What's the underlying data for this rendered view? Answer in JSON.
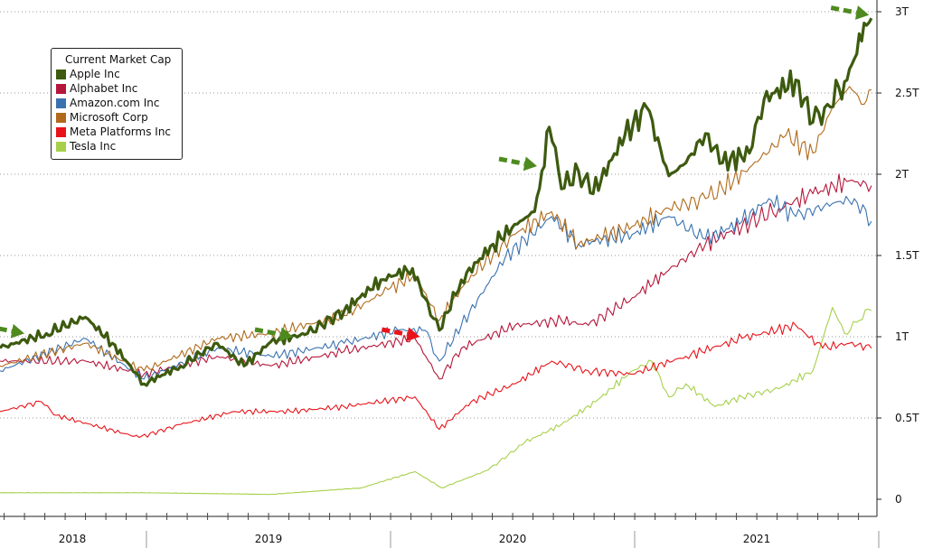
{
  "chart_data": {
    "type": "line",
    "title": "",
    "xlabel": "",
    "ylabel": "",
    "legend": {
      "title": "Current Market Cap",
      "placement": "top-left"
    },
    "xlim": [
      2018.4,
      2022.0
    ],
    "ylim": [
      0,
      3
    ],
    "x_ticks": [
      {
        "label": "2018",
        "x": 2018.7
      },
      {
        "label": "2019",
        "x": 2019.5
      },
      {
        "label": "2020",
        "x": 2020.5
      },
      {
        "label": "2021",
        "x": 2021.5
      }
    ],
    "year_boundaries": [
      2019,
      2020,
      2021,
      2022
    ],
    "y_ticks": [
      {
        "label": "0",
        "v": 0
      },
      {
        "label": "0.5T",
        "v": 0.5
      },
      {
        "label": "1T",
        "v": 1
      },
      {
        "label": "1.5T",
        "v": 1.5
      },
      {
        "label": "2T",
        "v": 2
      },
      {
        "label": "2.5T",
        "v": 2.5
      },
      {
        "label": "3T",
        "v": 3
      }
    ],
    "grid": "horizontal dotted",
    "units": "USD trillions",
    "series": [
      {
        "name": "Apple Inc",
        "color": "#3d5a0f",
        "width": 3.2,
        "points": [
          [
            2018.4,
            0.93
          ],
          [
            2018.59,
            1.02
          ],
          [
            2018.75,
            1.12
          ],
          [
            2018.86,
            0.96
          ],
          [
            2018.99,
            0.71
          ],
          [
            2019.14,
            0.82
          ],
          [
            2019.29,
            0.96
          ],
          [
            2019.4,
            0.82
          ],
          [
            2019.51,
            0.97
          ],
          [
            2019.66,
            1.02
          ],
          [
            2019.81,
            1.16
          ],
          [
            2019.96,
            1.35
          ],
          [
            2020.09,
            1.42
          ],
          [
            2020.14,
            1.24
          ],
          [
            2020.2,
            1.04
          ],
          [
            2020.29,
            1.35
          ],
          [
            2020.42,
            1.57
          ],
          [
            2020.53,
            1.71
          ],
          [
            2020.59,
            1.77
          ],
          [
            2020.62,
            2.02
          ],
          [
            2020.65,
            2.29
          ],
          [
            2020.7,
            1.91
          ],
          [
            2020.77,
            2.02
          ],
          [
            2020.83,
            1.88
          ],
          [
            2020.96,
            2.24
          ],
          [
            2021.05,
            2.41
          ],
          [
            2021.14,
            1.99
          ],
          [
            2021.21,
            2.07
          ],
          [
            2021.29,
            2.25
          ],
          [
            2021.36,
            2.07
          ],
          [
            2021.47,
            2.13
          ],
          [
            2021.53,
            2.46
          ],
          [
            2021.66,
            2.58
          ],
          [
            2021.73,
            2.32
          ],
          [
            2021.79,
            2.43
          ],
          [
            2021.86,
            2.57
          ],
          [
            2021.9,
            2.71
          ],
          [
            2021.94,
            2.93
          ],
          [
            2021.97,
            2.96
          ]
        ]
      },
      {
        "name": "Alphabet Inc",
        "color": "#b5173a",
        "width": 1.1,
        "points": [
          [
            2018.4,
            0.85
          ],
          [
            2018.75,
            0.85
          ],
          [
            2018.99,
            0.77
          ],
          [
            2019.29,
            0.88
          ],
          [
            2019.51,
            0.82
          ],
          [
            2019.81,
            0.91
          ],
          [
            2020.1,
            0.99
          ],
          [
            2020.2,
            0.74
          ],
          [
            2020.29,
            0.93
          ],
          [
            2020.51,
            1.07
          ],
          [
            2020.7,
            1.1
          ],
          [
            2020.81,
            1.07
          ],
          [
            2020.99,
            1.24
          ],
          [
            2021.14,
            1.41
          ],
          [
            2021.29,
            1.57
          ],
          [
            2021.44,
            1.68
          ],
          [
            2021.59,
            1.79
          ],
          [
            2021.73,
            1.88
          ],
          [
            2021.88,
            1.96
          ],
          [
            2021.97,
            1.93
          ]
        ]
      },
      {
        "name": "Amazon.com Inc",
        "color": "#3a72b0",
        "width": 1.1,
        "points": [
          [
            2018.4,
            0.79
          ],
          [
            2018.75,
            0.99
          ],
          [
            2018.99,
            0.74
          ],
          [
            2019.29,
            0.93
          ],
          [
            2019.51,
            0.88
          ],
          [
            2019.81,
            0.96
          ],
          [
            2020.03,
            1.04
          ],
          [
            2020.14,
            1.04
          ],
          [
            2020.2,
            0.85
          ],
          [
            2020.29,
            1.07
          ],
          [
            2020.47,
            1.49
          ],
          [
            2020.66,
            1.74
          ],
          [
            2020.77,
            1.57
          ],
          [
            2020.99,
            1.63
          ],
          [
            2021.14,
            1.74
          ],
          [
            2021.29,
            1.6
          ],
          [
            2021.44,
            1.71
          ],
          [
            2021.55,
            1.85
          ],
          [
            2021.66,
            1.74
          ],
          [
            2021.81,
            1.82
          ],
          [
            2021.9,
            1.85
          ],
          [
            2021.97,
            1.71
          ]
        ]
      },
      {
        "name": "Microsoft Corp",
        "color": "#b06a1a",
        "width": 1.1,
        "points": [
          [
            2018.4,
            0.82
          ],
          [
            2018.75,
            0.96
          ],
          [
            2018.99,
            0.79
          ],
          [
            2019.29,
            0.99
          ],
          [
            2019.51,
            1.02
          ],
          [
            2019.81,
            1.13
          ],
          [
            2019.99,
            1.29
          ],
          [
            2020.1,
            1.38
          ],
          [
            2020.2,
            1.1
          ],
          [
            2020.33,
            1.38
          ],
          [
            2020.51,
            1.63
          ],
          [
            2020.66,
            1.77
          ],
          [
            2020.77,
            1.57
          ],
          [
            2020.99,
            1.68
          ],
          [
            2021.14,
            1.79
          ],
          [
            2021.29,
            1.85
          ],
          [
            2021.36,
            1.91
          ],
          [
            2021.47,
            2.04
          ],
          [
            2021.62,
            2.24
          ],
          [
            2021.73,
            2.13
          ],
          [
            2021.81,
            2.41
          ],
          [
            2021.88,
            2.54
          ],
          [
            2021.94,
            2.43
          ],
          [
            2021.97,
            2.52
          ]
        ]
      },
      {
        "name": "Meta Platforms Inc",
        "color": "#e8141a",
        "width": 1.1,
        "points": [
          [
            2018.4,
            0.54
          ],
          [
            2018.57,
            0.6
          ],
          [
            2018.62,
            0.52
          ],
          [
            2018.97,
            0.38
          ],
          [
            2019.14,
            0.46
          ],
          [
            2019.36,
            0.54
          ],
          [
            2019.59,
            0.54
          ],
          [
            2019.81,
            0.57
          ],
          [
            2020.1,
            0.63
          ],
          [
            2020.2,
            0.43
          ],
          [
            2020.33,
            0.6
          ],
          [
            2020.51,
            0.71
          ],
          [
            2020.66,
            0.85
          ],
          [
            2020.81,
            0.79
          ],
          [
            2020.99,
            0.77
          ],
          [
            2021.21,
            0.88
          ],
          [
            2021.44,
            0.99
          ],
          [
            2021.66,
            1.07
          ],
          [
            2021.77,
            0.93
          ],
          [
            2021.88,
            0.96
          ],
          [
            2021.97,
            0.93
          ]
        ]
      },
      {
        "name": "Tesla Inc",
        "color": "#a6d04a",
        "width": 1.1,
        "points": [
          [
            2018.4,
            0.04
          ],
          [
            2018.99,
            0.04
          ],
          [
            2019.51,
            0.03
          ],
          [
            2019.88,
            0.07
          ],
          [
            2020.1,
            0.17
          ],
          [
            2020.21,
            0.07
          ],
          [
            2020.4,
            0.18
          ],
          [
            2020.55,
            0.35
          ],
          [
            2020.7,
            0.46
          ],
          [
            2020.84,
            0.6
          ],
          [
            2020.99,
            0.79
          ],
          [
            2021.07,
            0.85
          ],
          [
            2021.14,
            0.63
          ],
          [
            2021.21,
            0.71
          ],
          [
            2021.33,
            0.57
          ],
          [
            2021.44,
            0.63
          ],
          [
            2021.59,
            0.68
          ],
          [
            2021.73,
            0.79
          ],
          [
            2021.81,
            1.18
          ],
          [
            2021.86,
            1.02
          ],
          [
            2021.92,
            1.1
          ],
          [
            2021.97,
            1.16
          ]
        ]
      }
    ],
    "annotations": [
      {
        "type": "arrow",
        "color": "#4e8a1e",
        "style": "dashed",
        "x": 2018.5,
        "y": 1.02
      },
      {
        "type": "arrow",
        "color": "#4e8a1e",
        "style": "dashed",
        "x": 2019.6,
        "y": 1.0
      },
      {
        "type": "arrow",
        "color": "#e8141a",
        "style": "dashed",
        "x": 2020.12,
        "y": 1.0
      },
      {
        "type": "arrow",
        "color": "#4e8a1e",
        "style": "dashed",
        "x": 2020.6,
        "y": 2.05
      },
      {
        "type": "arrow",
        "color": "#4e8a1e",
        "style": "dashed",
        "x": 2021.96,
        "y": 2.98
      }
    ]
  }
}
